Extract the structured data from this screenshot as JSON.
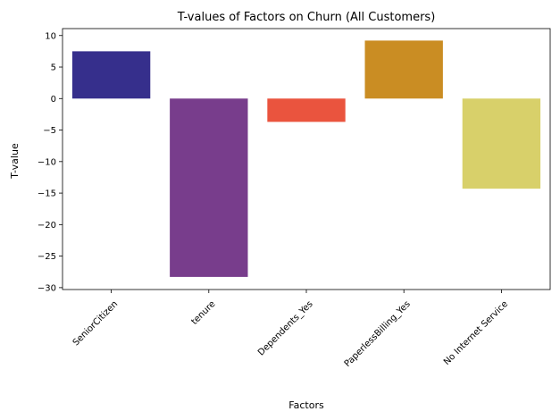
{
  "chart_data": {
    "type": "bar",
    "title": "T-values of Factors on Churn (All Customers)",
    "xlabel": "Factors",
    "ylabel": "T-value",
    "categories": [
      "SeniorCitizen",
      "tenure",
      "Dependents_Yes",
      "PaperlessBilling_Yes",
      "No Internet Service"
    ],
    "values": [
      7.5,
      -28.3,
      -3.7,
      9.2,
      -14.3
    ],
    "colors": [
      "#362f8c",
      "#783d8c",
      "#ea543e",
      "#ca8d23",
      "#d8d06a"
    ],
    "ylim": [
      -30.3,
      11.1
    ],
    "yticks": [
      -30,
      -25,
      -20,
      -15,
      -10,
      -5,
      0,
      5,
      10
    ],
    "ytick_labels": [
      "−30",
      "−25",
      "−20",
      "−15",
      "−10",
      "−5",
      "0",
      "5",
      "10"
    ],
    "grid": false,
    "legend": false
  }
}
